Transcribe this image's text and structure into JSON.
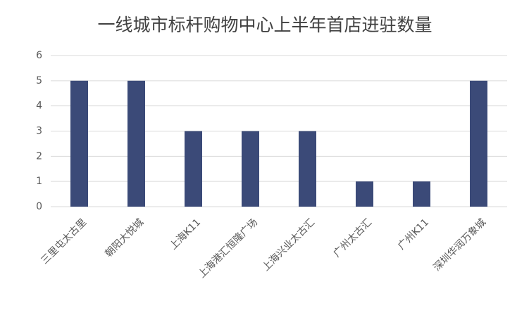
{
  "chart_data": {
    "type": "bar",
    "title": "一线城市标杆购物中心上半年首店进驻数量",
    "categories": [
      "三里屯太古里",
      "朝阳大悦城",
      "上海K11",
      "上海港汇恒隆广场",
      "上海兴业太古汇",
      "广州太古汇",
      "广州K11",
      "深圳华润万象城"
    ],
    "values": [
      5,
      5,
      3,
      3,
      3,
      1,
      1,
      5
    ],
    "color": "#3b4a78",
    "ylim": [
      0,
      6
    ],
    "yticks": [
      0,
      1,
      2,
      3,
      4,
      5,
      6
    ],
    "grid": true
  }
}
